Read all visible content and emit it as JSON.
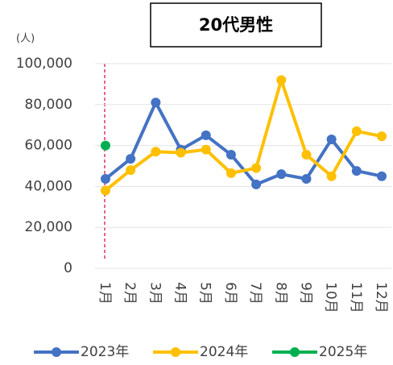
{
  "chart_data": {
    "type": "line",
    "title": "20代男性",
    "y_unit": "(人)",
    "categories": [
      "1月",
      "2月",
      "3月",
      "4月",
      "5月",
      "6月",
      "7月",
      "8月",
      "9月",
      "10月",
      "11月",
      "12月"
    ],
    "series": [
      {
        "name": "2023年",
        "color": "#4472c4",
        "values": [
          43700,
          53500,
          81000,
          58000,
          65000,
          55500,
          41000,
          46000,
          43700,
          63000,
          47600,
          45000
        ]
      },
      {
        "name": "2024年",
        "color": "#ffc000",
        "values": [
          38000,
          48000,
          57000,
          56500,
          58000,
          46500,
          49000,
          92000,
          55500,
          45000,
          67000,
          64500
        ]
      },
      {
        "name": "2025年",
        "color": "#00b050",
        "values": [
          60000,
          null,
          null,
          null,
          null,
          null,
          null,
          null,
          null,
          null,
          null,
          null
        ]
      }
    ],
    "ylim": [
      0,
      100000
    ],
    "yticks": [
      0,
      {
        "value": 20000,
        "label": "20,000"
      },
      {
        "value": 40000,
        "label": "40,000"
      },
      {
        "value": 60000,
        "label": "60,000"
      },
      {
        "value": 80000,
        "label": "80,000"
      },
      {
        "value": 100000,
        "label": "100,000"
      }
    ],
    "grid": true,
    "legend": "bottom"
  }
}
